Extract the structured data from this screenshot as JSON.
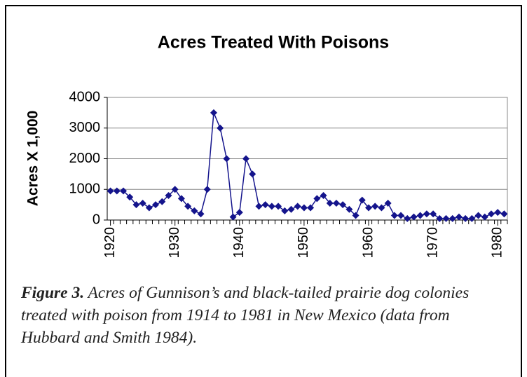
{
  "chart_data": {
    "type": "line",
    "title": "Acres Treated With Poisons",
    "ylabel": "Acres X 1,000",
    "x": [
      1920,
      1921,
      1922,
      1923,
      1924,
      1925,
      1926,
      1927,
      1928,
      1929,
      1930,
      1931,
      1932,
      1933,
      1934,
      1935,
      1936,
      1937,
      1938,
      1939,
      1940,
      1941,
      1942,
      1943,
      1944,
      1945,
      1946,
      1947,
      1948,
      1949,
      1950,
      1951,
      1952,
      1953,
      1954,
      1955,
      1956,
      1957,
      1958,
      1959,
      1960,
      1961,
      1962,
      1963,
      1964,
      1965,
      1966,
      1967,
      1968,
      1969,
      1970,
      1971,
      1972,
      1973,
      1974,
      1975,
      1976,
      1977,
      1978,
      1979,
      1980,
      1981
    ],
    "series": [
      {
        "color": "#14148c",
        "values": [
          950,
          950,
          950,
          750,
          500,
          550,
          400,
          500,
          600,
          800,
          1000,
          700,
          450,
          300,
          200,
          1000,
          3500,
          3000,
          2000,
          100,
          250,
          2000,
          1500,
          450,
          500,
          450,
          450,
          300,
          350,
          450,
          400,
          400,
          700,
          800,
          550,
          550,
          500,
          350,
          150,
          650,
          400,
          450,
          400,
          550,
          150,
          150,
          50,
          100,
          150,
          200,
          200,
          50,
          50,
          50,
          100,
          50,
          50,
          150,
          100,
          200,
          250,
          200
        ]
      }
    ],
    "xlim": [
      1919.5,
      1981.5
    ],
    "xticks": [
      1920,
      1930,
      1940,
      1950,
      1960,
      1970,
      1980
    ],
    "ylim": [
      0,
      4000
    ],
    "yticks": [
      0,
      1000,
      2000,
      3000,
      4000
    ],
    "grid": true
  },
  "caption": {
    "label": "Figure 3.",
    "text": " Acres of Gunnison’s and black-tailed prairie dog colonies treated with poison from 1914 to 1981 in New Mexico (data from Hubbard and Smith 1984)."
  }
}
